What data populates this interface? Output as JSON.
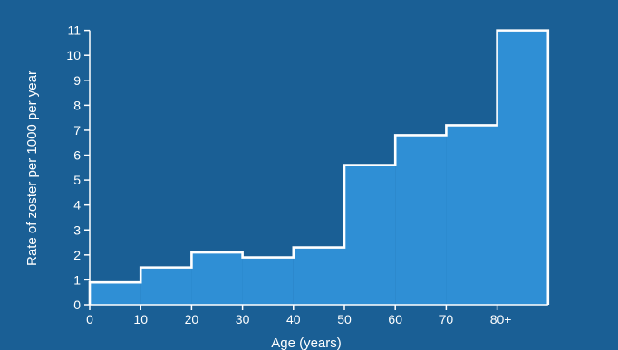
{
  "colors": {
    "background": "#1a5f95",
    "bar_fill": "#2f8fd5",
    "bar_stroke": "#ffffff",
    "text": "#ffffff"
  },
  "chart_data": {
    "type": "bar",
    "style": "histogram-step",
    "title": "",
    "xlabel": "Age (years)",
    "ylabel": "Rate of zoster per 1000 per year",
    "x_ticks": [
      "0",
      "10",
      "20",
      "30",
      "40",
      "50",
      "60",
      "70",
      "80+"
    ],
    "y_ticks": [
      "0",
      "1",
      "2",
      "3",
      "4",
      "5",
      "6",
      "7",
      "8",
      "9",
      "10",
      "11"
    ],
    "ylim": [
      0,
      11
    ],
    "xlim": [
      0,
      90
    ],
    "categories": [
      "0-10",
      "10-20",
      "20-30",
      "30-40",
      "40-50",
      "50-60",
      "60-70",
      "70-80",
      "80+"
    ],
    "bins": [
      {
        "start": 0,
        "end": 10,
        "value": 0.9
      },
      {
        "start": 10,
        "end": 20,
        "value": 1.5
      },
      {
        "start": 20,
        "end": 30,
        "value": 2.1
      },
      {
        "start": 30,
        "end": 40,
        "value": 1.9
      },
      {
        "start": 40,
        "end": 50,
        "value": 2.3
      },
      {
        "start": 50,
        "end": 60,
        "value": 5.6
      },
      {
        "start": 60,
        "end": 70,
        "value": 6.8
      },
      {
        "start": 70,
        "end": 80,
        "value": 7.2
      },
      {
        "start": 80,
        "end": 90,
        "value": 11.0
      }
    ],
    "grid": false,
    "legend": "none"
  }
}
